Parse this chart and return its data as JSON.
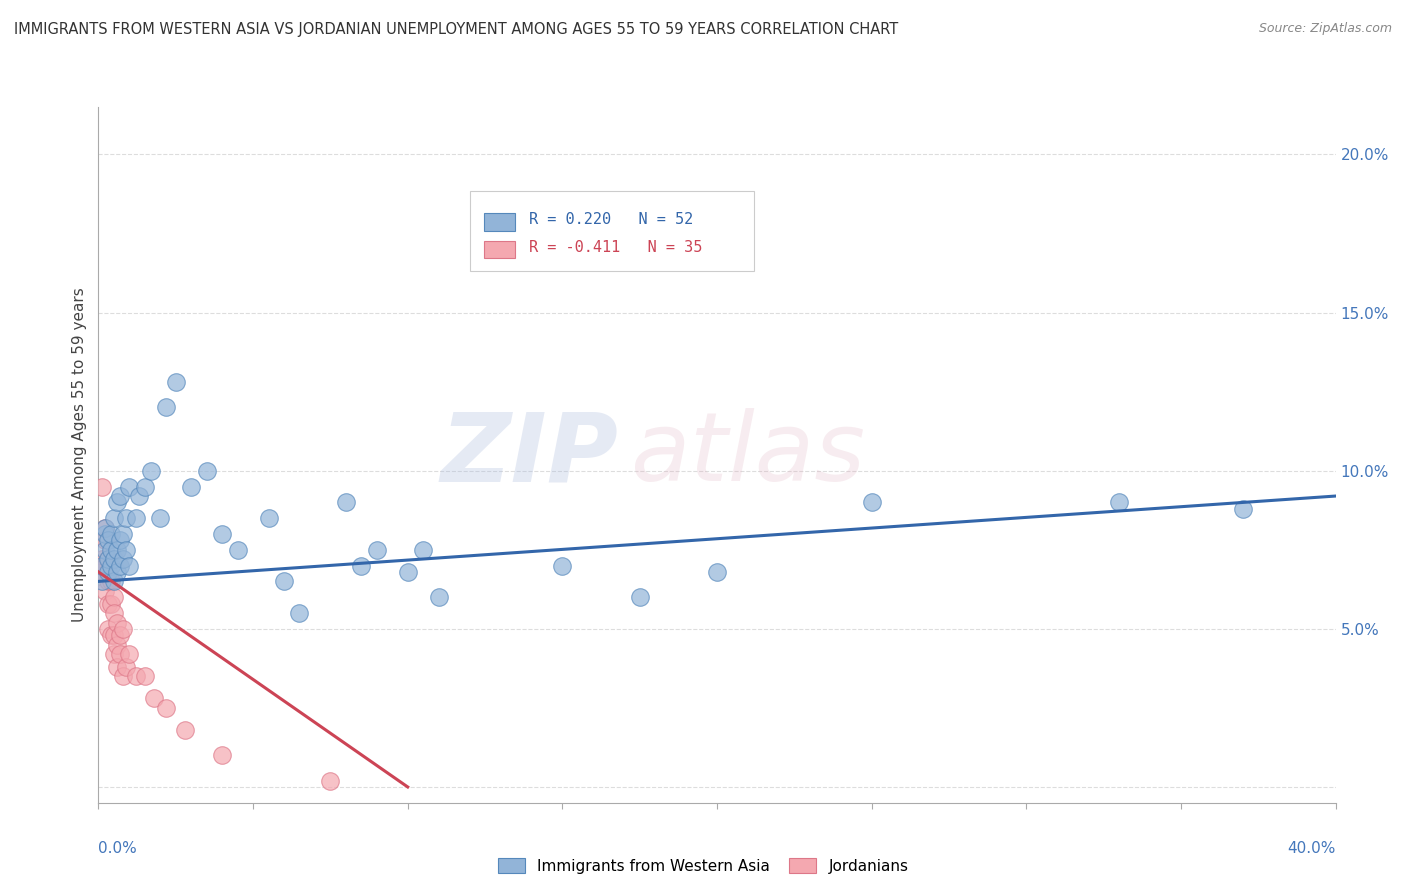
{
  "title": "IMMIGRANTS FROM WESTERN ASIA VS JORDANIAN UNEMPLOYMENT AMONG AGES 55 TO 59 YEARS CORRELATION CHART",
  "source": "Source: ZipAtlas.com",
  "ylabel": "Unemployment Among Ages 55 to 59 years",
  "ylabel_right_ticks": [
    "20.0%",
    "15.0%",
    "10.0%",
    "5.0%",
    ""
  ],
  "ylabel_right_vals": [
    0.2,
    0.15,
    0.1,
    0.05,
    0.0
  ],
  "xlim": [
    0.0,
    0.4
  ],
  "ylim": [
    -0.005,
    0.215
  ],
  "blue_R": "R = 0.220",
  "blue_N": "N = 52",
  "pink_R": "R = -0.411",
  "pink_N": "N = 35",
  "blue_color": "#92B4D8",
  "pink_color": "#F4A8B0",
  "blue_edge_color": "#5588BB",
  "pink_edge_color": "#DD7788",
  "blue_line_color": "#3366AA",
  "pink_line_color": "#CC4455",
  "legend_label_blue": "Immigrants from Western Asia",
  "legend_label_pink": "Jordanians",
  "blue_scatter_x": [
    0.001,
    0.001,
    0.002,
    0.002,
    0.002,
    0.003,
    0.003,
    0.003,
    0.004,
    0.004,
    0.004,
    0.005,
    0.005,
    0.005,
    0.006,
    0.006,
    0.006,
    0.007,
    0.007,
    0.007,
    0.008,
    0.008,
    0.009,
    0.009,
    0.01,
    0.01,
    0.012,
    0.013,
    0.015,
    0.017,
    0.02,
    0.022,
    0.025,
    0.03,
    0.035,
    0.04,
    0.045,
    0.055,
    0.06,
    0.065,
    0.08,
    0.085,
    0.09,
    0.1,
    0.105,
    0.11,
    0.15,
    0.175,
    0.2,
    0.25,
    0.33,
    0.37
  ],
  "blue_scatter_y": [
    0.065,
    0.07,
    0.075,
    0.08,
    0.082,
    0.068,
    0.072,
    0.078,
    0.07,
    0.075,
    0.08,
    0.065,
    0.072,
    0.085,
    0.068,
    0.075,
    0.09,
    0.07,
    0.078,
    0.092,
    0.072,
    0.08,
    0.075,
    0.085,
    0.07,
    0.095,
    0.085,
    0.092,
    0.095,
    0.1,
    0.085,
    0.12,
    0.128,
    0.095,
    0.1,
    0.08,
    0.075,
    0.085,
    0.065,
    0.055,
    0.09,
    0.07,
    0.075,
    0.068,
    0.075,
    0.06,
    0.07,
    0.06,
    0.068,
    0.09,
    0.09,
    0.088
  ],
  "pink_scatter_x": [
    0.0005,
    0.001,
    0.001,
    0.001,
    0.002,
    0.002,
    0.002,
    0.002,
    0.003,
    0.003,
    0.003,
    0.003,
    0.004,
    0.004,
    0.004,
    0.005,
    0.005,
    0.005,
    0.005,
    0.006,
    0.006,
    0.006,
    0.007,
    0.007,
    0.008,
    0.008,
    0.009,
    0.01,
    0.012,
    0.015,
    0.018,
    0.022,
    0.028,
    0.04,
    0.075
  ],
  "pink_scatter_y": [
    0.068,
    0.072,
    0.068,
    0.095,
    0.078,
    0.082,
    0.07,
    0.062,
    0.072,
    0.065,
    0.058,
    0.05,
    0.065,
    0.058,
    0.048,
    0.06,
    0.055,
    0.048,
    0.042,
    0.052,
    0.045,
    0.038,
    0.048,
    0.042,
    0.05,
    0.035,
    0.038,
    0.042,
    0.035,
    0.035,
    0.028,
    0.025,
    0.018,
    0.01,
    0.002
  ],
  "blue_trend_x": [
    0.0,
    0.4
  ],
  "blue_trend_y": [
    0.065,
    0.092
  ],
  "pink_trend_x": [
    0.0,
    0.1
  ],
  "pink_trend_y": [
    0.068,
    0.0
  ],
  "watermark_zip": "ZIP",
  "watermark_atlas": "atlas",
  "grid_color": "#DDDDDD",
  "bg_color": "#FFFFFF"
}
